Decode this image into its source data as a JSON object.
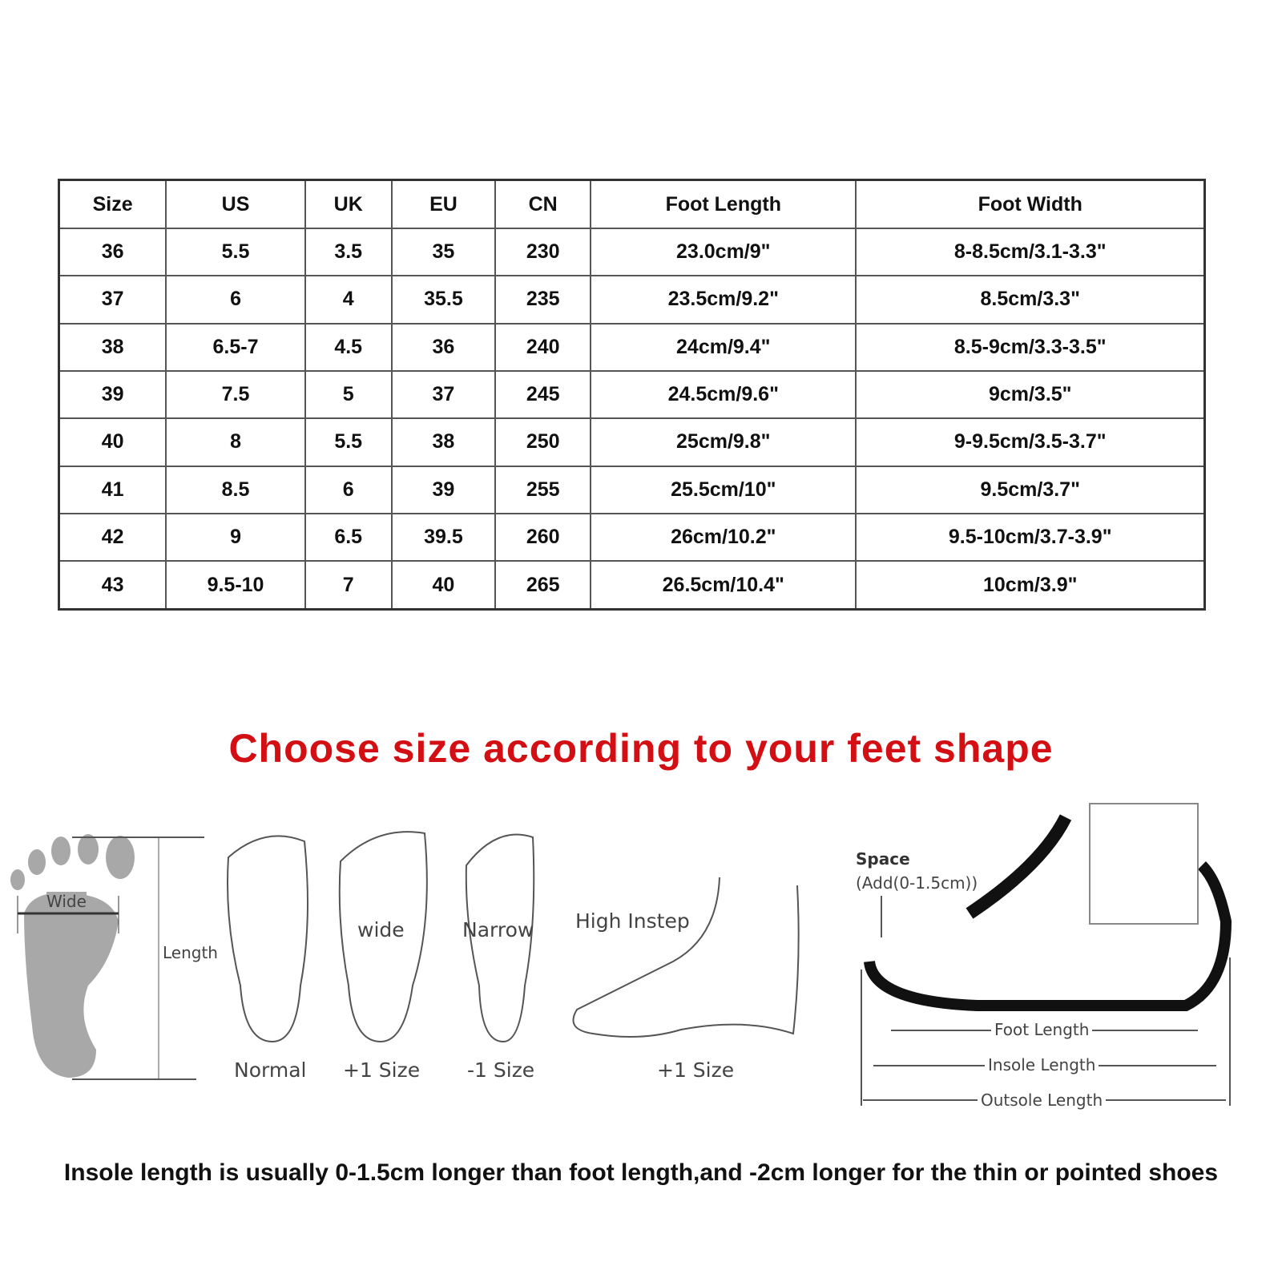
{
  "size_table": {
    "headers": [
      "Size",
      "US",
      "UK",
      "EU",
      "CN",
      "Foot Length",
      "Foot Width"
    ],
    "rows": [
      [
        "36",
        "5.5",
        "3.5",
        "35",
        "230",
        "23.0cm/9\"",
        "8-8.5cm/3.1-3.3\""
      ],
      [
        "37",
        "6",
        "4",
        "35.5",
        "235",
        "23.5cm/9.2\"",
        "8.5cm/3.3\""
      ],
      [
        "38",
        "6.5-7",
        "4.5",
        "36",
        "240",
        "24cm/9.4\"",
        "8.5-9cm/3.3-3.5\""
      ],
      [
        "39",
        "7.5",
        "5",
        "37",
        "245",
        "24.5cm/9.6\"",
        "9cm/3.5\""
      ],
      [
        "40",
        "8",
        "5.5",
        "38",
        "250",
        "25cm/9.8\"",
        "9-9.5cm/3.5-3.7\""
      ],
      [
        "41",
        "8.5",
        "6",
        "39",
        "255",
        "25.5cm/10\"",
        "9.5cm/3.7\""
      ],
      [
        "42",
        "9",
        "6.5",
        "39.5",
        "260",
        "26cm/10.2\"",
        "9.5-10cm/3.7-3.9\""
      ],
      [
        "43",
        "9.5-10",
        "7",
        "40",
        "265",
        "26.5cm/10.4\"",
        "10cm/3.9\""
      ]
    ]
  },
  "guide": {
    "title": "Choose size according to your feet shape",
    "title_color": "#d40f14",
    "wide": "Wide",
    "length": "Length",
    "wide_arrow": "wide",
    "narrow_arrow": "Narrow",
    "high_instep": "High Instep",
    "normal": "Normal",
    "plus_one": "+1 Size",
    "minus_one": "-1 Size",
    "plus_one_instep": "+1 Size",
    "space": "Space",
    "space_add": "(Add(0-1.5cm))",
    "foot_length": "Foot Length",
    "insole_length": "Insole Length",
    "outsole_length": "Outsole Length"
  },
  "note": "Insole length is usually 0-1.5cm longer than foot length,and -2cm longer for the thin or pointed shoes"
}
